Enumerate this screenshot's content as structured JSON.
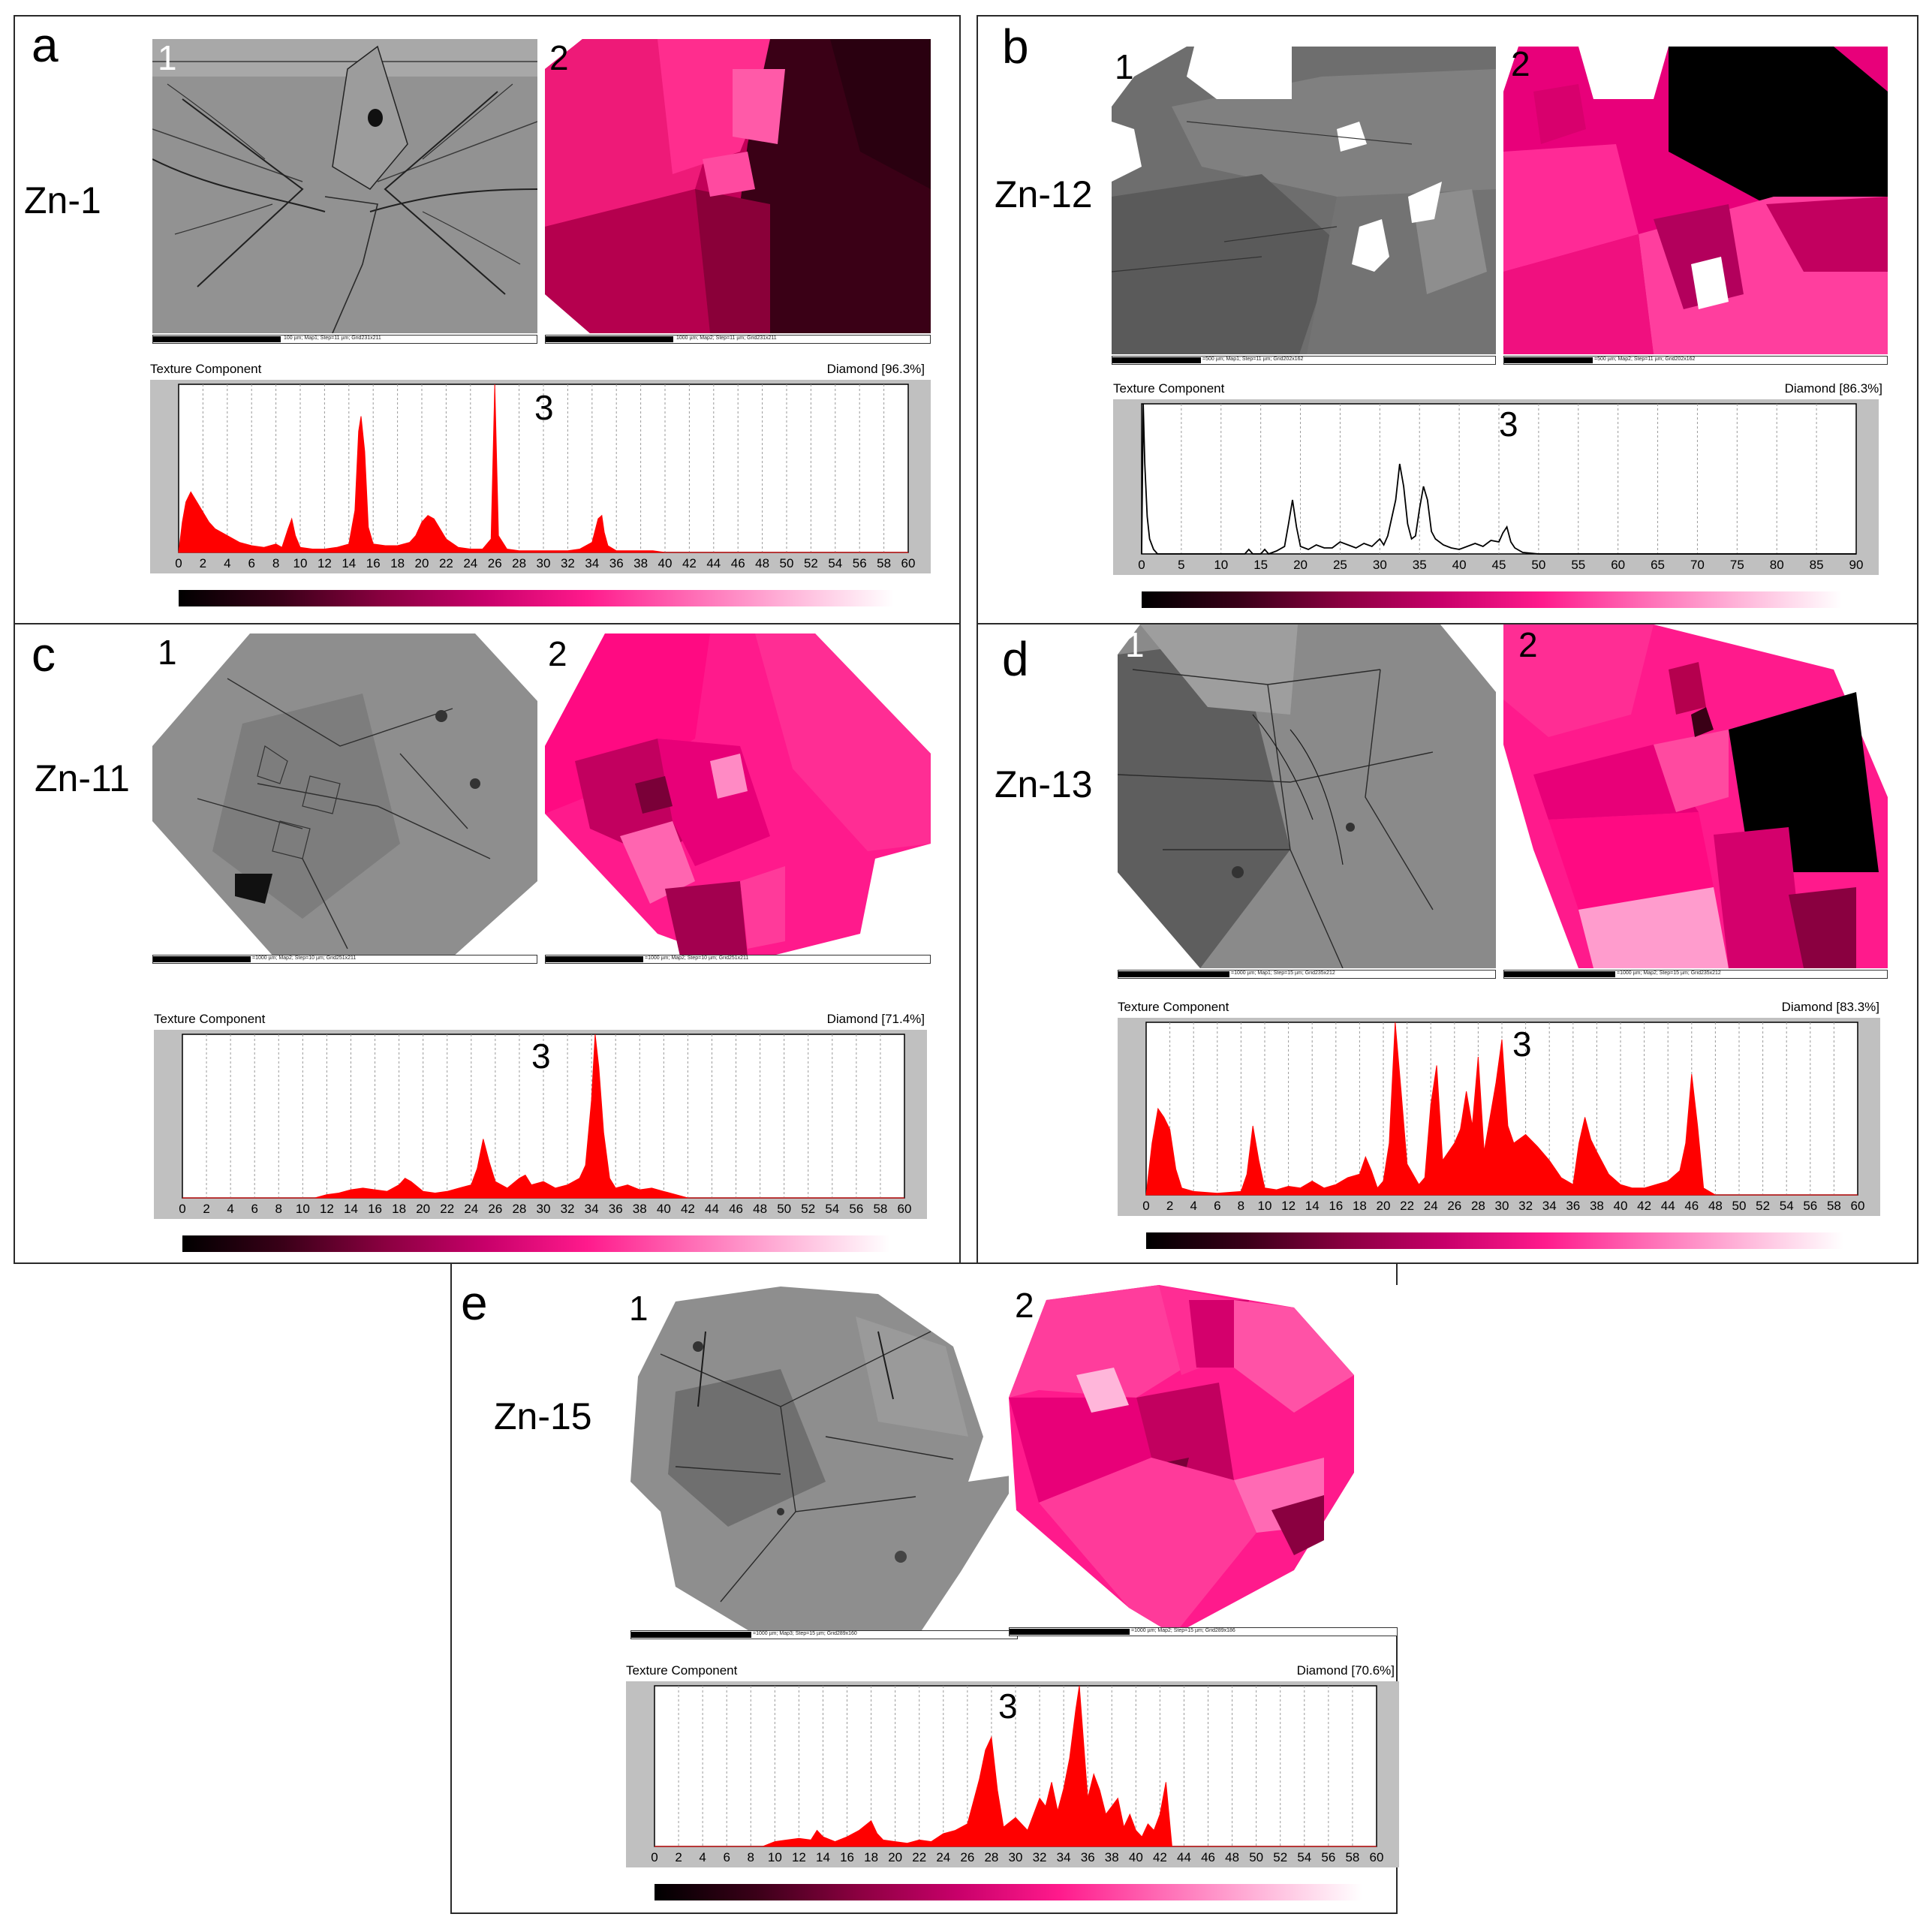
{
  "panels": [
    {
      "letter": "a",
      "sample": "Zn-1",
      "ebsd_label": "1",
      "ipf_label": "2",
      "hist_label": "3",
      "scale_ebsd": "100 µm; Map1; Step=11 µm; Grid231x211",
      "scale_ipf": "1000 µm; Map2; Step=11 µm; Grid231x211"
    },
    {
      "letter": "b",
      "sample": "Zn-12",
      "ebsd_label": "1",
      "ipf_label": "2",
      "hist_label": "3",
      "scale_ebsd": "=500 µm; Map1; Step=11 µm; Grid202x162",
      "scale_ipf": "=500 µm; Map2; Step=11 µm; Grid202x162"
    },
    {
      "letter": "c",
      "sample": "Zn-11",
      "ebsd_label": "1",
      "ipf_label": "2",
      "hist_label": "3",
      "scale_ebsd": "=1000 µm; Map2; Step=10 µm; Grid251x211",
      "scale_ipf": "=1000 µm; Map2; Step=10 µm; Grid251x211"
    },
    {
      "letter": "d",
      "sample": "Zn-13",
      "ebsd_label": "1",
      "ipf_label": "2",
      "hist_label": "3",
      "scale_ebsd": "=1000 µm; Map1; Step=15 µm; Grid235x212",
      "scale_ipf": "=1000 µm; Map2; Step=15 µm; Grid235x212"
    },
    {
      "letter": "e",
      "sample": "Zn-15",
      "ebsd_label": "1",
      "ipf_label": "2",
      "hist_label": "3",
      "scale_ebsd": "=1000 µm; Map3; Step=15 µm; Grid289x160",
      "scale_ipf": "=1000 µm; Map2; Step=15 µm; Grid289x186"
    }
  ],
  "chart_data": [
    {
      "panel": "a",
      "type": "area",
      "title": "Texture Component",
      "legend": "Diamond [96.3%]",
      "color": "#ff0000",
      "xlim": [
        0,
        60
      ],
      "xticks": [
        0,
        2,
        4,
        6,
        8,
        10,
        12,
        14,
        16,
        18,
        20,
        22,
        24,
        26,
        28,
        30,
        32,
        34,
        36,
        38,
        40,
        42,
        44,
        46,
        48,
        50,
        52,
        54,
        56,
        58,
        60
      ],
      "ylim": [
        0,
        100
      ],
      "x": [
        0,
        0.3,
        0.6,
        1,
        1.5,
        2,
        2.5,
        3,
        4,
        5,
        6,
        7,
        8,
        8.5,
        9,
        9.3,
        9.6,
        10,
        11,
        12,
        13,
        14,
        14.5,
        14.8,
        15,
        15.3,
        15.6,
        16,
        17,
        18,
        19,
        19.5,
        20,
        20.5,
        21,
        21.5,
        22,
        23,
        24,
        25,
        25.7,
        26,
        26.3,
        27,
        28,
        30,
        32,
        33,
        34,
        34.5,
        34.8,
        35,
        35.3,
        36,
        37,
        38,
        39,
        40,
        45,
        50,
        55,
        60
      ],
      "y": [
        0,
        18,
        30,
        36,
        30,
        24,
        18,
        14,
        10,
        6,
        4,
        3,
        5,
        3,
        14,
        20,
        10,
        3,
        2,
        2,
        3,
        5,
        25,
        72,
        81,
        60,
        15,
        5,
        4,
        4,
        6,
        10,
        18,
        22,
        20,
        14,
        8,
        3,
        2,
        2,
        8,
        100,
        10,
        2,
        1,
        1,
        1,
        2,
        6,
        20,
        22,
        12,
        4,
        1,
        1,
        1,
        1,
        0,
        0,
        0,
        0,
        0
      ]
    },
    {
      "panel": "b",
      "type": "line",
      "title": "Texture Component",
      "legend": "Diamond [86.3%]",
      "color": "#000000",
      "xlim": [
        0,
        90
      ],
      "xticks": [
        0,
        5,
        10,
        15,
        20,
        25,
        30,
        35,
        40,
        45,
        50,
        55,
        60,
        65,
        70,
        75,
        80,
        85,
        90
      ],
      "ylim": [
        0,
        100
      ],
      "x": [
        0,
        0.2,
        0.4,
        0.7,
        1,
        1.5,
        2,
        5,
        10,
        13,
        13.5,
        14,
        15,
        15.5,
        16,
        17,
        18,
        18.5,
        19,
        19.5,
        20,
        21,
        22,
        23,
        24,
        25,
        26,
        27,
        28,
        29,
        30,
        30.5,
        31,
        31.5,
        32,
        32.5,
        33,
        33.5,
        34,
        34.5,
        35,
        35.5,
        36,
        36.5,
        37,
        38,
        39,
        40,
        41,
        42,
        43,
        44,
        45,
        45.5,
        46,
        46.5,
        47,
        48,
        50,
        60,
        70,
        80,
        90
      ],
      "y": [
        0,
        100,
        60,
        25,
        10,
        3,
        0,
        0,
        0,
        0,
        3,
        0,
        0,
        3,
        0,
        2,
        5,
        20,
        36,
        18,
        5,
        3,
        6,
        4,
        4,
        8,
        6,
        4,
        7,
        5,
        10,
        6,
        12,
        24,
        36,
        60,
        45,
        20,
        10,
        12,
        30,
        45,
        36,
        15,
        10,
        6,
        4,
        3,
        5,
        7,
        5,
        9,
        8,
        14,
        18,
        8,
        4,
        1,
        0,
        0,
        0,
        0,
        0
      ]
    },
    {
      "panel": "c",
      "type": "area",
      "title": "Texture Component",
      "legend": "Diamond [71.4%]",
      "color": "#ff0000",
      "xlim": [
        0,
        60
      ],
      "xticks": [
        0,
        2,
        4,
        6,
        8,
        10,
        12,
        14,
        16,
        18,
        20,
        22,
        24,
        26,
        28,
        30,
        32,
        34,
        36,
        38,
        40,
        42,
        44,
        46,
        48,
        50,
        52,
        54,
        56,
        58,
        60
      ],
      "ylim": [
        0,
        100
      ],
      "x": [
        0,
        11,
        12,
        13,
        14,
        15,
        16,
        17,
        18,
        18.5,
        19,
        20,
        21,
        22,
        23,
        24,
        24.5,
        25,
        25.5,
        26,
        27,
        28,
        28.5,
        29,
        30,
        31,
        32,
        33,
        33.5,
        34,
        34.3,
        34.6,
        35,
        35.5,
        36,
        37,
        38,
        39,
        40,
        41,
        42,
        50,
        60
      ],
      "y": [
        0,
        0,
        2,
        3,
        5,
        6,
        5,
        4,
        8,
        12,
        10,
        4,
        3,
        4,
        6,
        8,
        18,
        36,
        22,
        10,
        6,
        12,
        14,
        8,
        10,
        6,
        8,
        12,
        20,
        60,
        100,
        80,
        40,
        12,
        6,
        8,
        5,
        6,
        4,
        2,
        0,
        0,
        0
      ]
    },
    {
      "panel": "d",
      "type": "area",
      "title": "Texture Component",
      "legend": "Diamond [83.3%]",
      "color": "#ff0000",
      "xlim": [
        0,
        60
      ],
      "xticks": [
        0,
        2,
        4,
        6,
        8,
        10,
        12,
        14,
        16,
        18,
        20,
        22,
        24,
        26,
        28,
        30,
        32,
        34,
        36,
        38,
        40,
        42,
        44,
        46,
        48,
        50,
        52,
        54,
        56,
        58,
        60
      ],
      "ylim": [
        0,
        100
      ],
      "x": [
        0,
        0.5,
        1,
        1.5,
        2,
        2.5,
        3,
        4,
        6,
        8,
        8.5,
        9,
        9.5,
        10,
        11,
        12,
        13,
        14,
        15,
        16,
        17,
        18,
        18.5,
        19,
        19.5,
        20,
        20.5,
        21,
        21.5,
        22,
        23,
        23.5,
        24,
        24.5,
        25,
        26,
        26.5,
        27,
        27.5,
        28,
        28.5,
        29,
        29.5,
        30,
        30.5,
        31,
        32,
        33,
        34,
        35,
        36,
        36.5,
        37,
        37.5,
        38,
        39,
        40,
        41,
        42,
        43,
        44,
        45,
        45.5,
        46,
        46.5,
        47,
        48,
        50,
        60
      ],
      "y": [
        0,
        30,
        50,
        45,
        38,
        15,
        4,
        2,
        1,
        2,
        12,
        40,
        20,
        4,
        3,
        5,
        4,
        8,
        4,
        6,
        10,
        12,
        22,
        14,
        4,
        8,
        30,
        100,
        60,
        18,
        6,
        10,
        52,
        75,
        20,
        30,
        38,
        60,
        40,
        80,
        25,
        45,
        65,
        90,
        40,
        30,
        35,
        28,
        20,
        10,
        6,
        30,
        45,
        32,
        25,
        12,
        6,
        4,
        4,
        6,
        8,
        14,
        30,
        70,
        40,
        4,
        0,
        0,
        0
      ]
    },
    {
      "panel": "e",
      "type": "area",
      "title": "Texture Component",
      "legend": "Diamond [70.6%]",
      "color": "#ff0000",
      "xlim": [
        0,
        60
      ],
      "xticks": [
        0,
        2,
        4,
        6,
        8,
        10,
        12,
        14,
        16,
        18,
        20,
        22,
        24,
        26,
        28,
        30,
        32,
        34,
        36,
        38,
        40,
        42,
        44,
        46,
        48,
        50,
        52,
        54,
        56,
        58,
        60
      ],
      "ylim": [
        0,
        100
      ],
      "x": [
        0,
        9,
        10,
        11,
        12,
        13,
        13.5,
        14,
        15,
        16,
        17,
        18,
        18.5,
        19,
        20,
        21,
        22,
        23,
        24,
        25,
        26,
        26.5,
        27,
        27.5,
        28,
        28.5,
        29,
        30,
        31,
        32,
        32.5,
        33,
        33.5,
        34,
        34.5,
        35,
        35.3,
        35.6,
        36,
        36.5,
        37,
        37.5,
        38,
        38.5,
        39,
        39.5,
        40,
        40.5,
        41,
        41.5,
        42,
        42.5,
        43,
        50,
        60
      ],
      "y": [
        0,
        0,
        3,
        4,
        5,
        4,
        10,
        6,
        3,
        6,
        10,
        16,
        8,
        4,
        3,
        2,
        4,
        3,
        8,
        10,
        14,
        28,
        42,
        60,
        68,
        35,
        12,
        18,
        10,
        30,
        25,
        40,
        22,
        36,
        55,
        85,
        100,
        70,
        30,
        45,
        35,
        20,
        25,
        30,
        12,
        20,
        10,
        6,
        14,
        10,
        20,
        40,
        0,
        0,
        0
      ]
    }
  ],
  "colorbar": {
    "stops": [
      "#000000",
      "#3a0018",
      "#8a0040",
      "#c8006a",
      "#ff1a8c",
      "#ff6ab4",
      "#ffb6da",
      "#ffffff"
    ]
  }
}
